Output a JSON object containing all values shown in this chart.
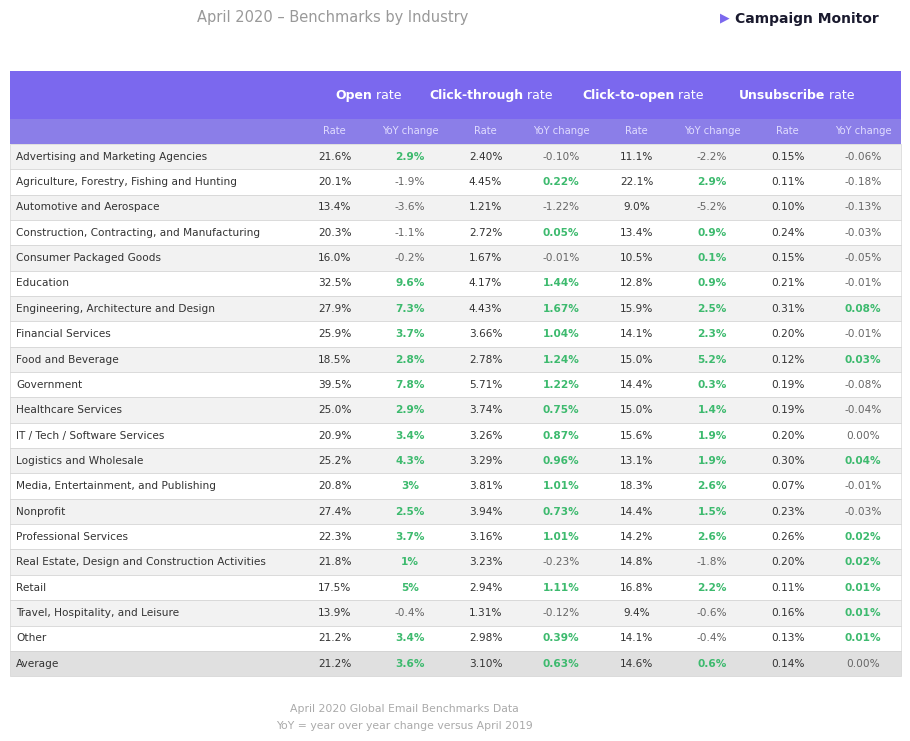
{
  "title": "April 2020 – Benchmarks by Industry",
  "logo_text": "Campaign Monitor",
  "footer1": "April 2020 Global Email Benchmarks Data",
  "footer2": "YoY = year over year change versus April 2019",
  "header_bg": "#7B68EE",
  "sub_header_bg": "#8B7EE8",
  "row_bg_light": "#F2F2F2",
  "row_bg_white": "#FFFFFF",
  "avg_row_bg": "#E0E0E0",
  "industries": [
    "Advertising and Marketing Agencies",
    "Agriculture, Forestry, Fishing and Hunting",
    "Automotive and Aerospace",
    "Construction, Contracting, and Manufacturing",
    "Consumer Packaged Goods",
    "Education",
    "Engineering, Architecture and Design",
    "Financial Services",
    "Food and Beverage",
    "Government",
    "Healthcare Services",
    "IT / Tech / Software Services",
    "Logistics and Wholesale",
    "Media, Entertainment, and Publishing",
    "Nonprofit",
    "Professional Services",
    "Real Estate, Design and Construction Activities",
    "Retail",
    "Travel, Hospitality, and Leisure",
    "Other",
    "Average"
  ],
  "data": [
    [
      "21.6%",
      "2.9%",
      "2.40%",
      "-0.10%",
      "11.1%",
      "-2.2%",
      "0.15%",
      "-0.06%"
    ],
    [
      "20.1%",
      "-1.9%",
      "4.45%",
      "0.22%",
      "22.1%",
      "2.9%",
      "0.11%",
      "-0.18%"
    ],
    [
      "13.4%",
      "-3.6%",
      "1.21%",
      "-1.22%",
      "9.0%",
      "-5.2%",
      "0.10%",
      "-0.13%"
    ],
    [
      "20.3%",
      "-1.1%",
      "2.72%",
      "0.05%",
      "13.4%",
      "0.9%",
      "0.24%",
      "-0.03%"
    ],
    [
      "16.0%",
      "-0.2%",
      "1.67%",
      "-0.01%",
      "10.5%",
      "0.1%",
      "0.15%",
      "-0.05%"
    ],
    [
      "32.5%",
      "9.6%",
      "4.17%",
      "1.44%",
      "12.8%",
      "0.9%",
      "0.21%",
      "-0.01%"
    ],
    [
      "27.9%",
      "7.3%",
      "4.43%",
      "1.67%",
      "15.9%",
      "2.5%",
      "0.31%",
      "0.08%"
    ],
    [
      "25.9%",
      "3.7%",
      "3.66%",
      "1.04%",
      "14.1%",
      "2.3%",
      "0.20%",
      "-0.01%"
    ],
    [
      "18.5%",
      "2.8%",
      "2.78%",
      "1.24%",
      "15.0%",
      "5.2%",
      "0.12%",
      "0.03%"
    ],
    [
      "39.5%",
      "7.8%",
      "5.71%",
      "1.22%",
      "14.4%",
      "0.3%",
      "0.19%",
      "-0.08%"
    ],
    [
      "25.0%",
      "2.9%",
      "3.74%",
      "0.75%",
      "15.0%",
      "1.4%",
      "0.19%",
      "-0.04%"
    ],
    [
      "20.9%",
      "3.4%",
      "3.26%",
      "0.87%",
      "15.6%",
      "1.9%",
      "0.20%",
      "0.00%"
    ],
    [
      "25.2%",
      "4.3%",
      "3.29%",
      "0.96%",
      "13.1%",
      "1.9%",
      "0.30%",
      "0.04%"
    ],
    [
      "20.8%",
      "3%",
      "3.81%",
      "1.01%",
      "18.3%",
      "2.6%",
      "0.07%",
      "-0.01%"
    ],
    [
      "27.4%",
      "2.5%",
      "3.94%",
      "0.73%",
      "14.4%",
      "1.5%",
      "0.23%",
      "-0.03%"
    ],
    [
      "22.3%",
      "3.7%",
      "3.16%",
      "1.01%",
      "14.2%",
      "2.6%",
      "0.26%",
      "0.02%"
    ],
    [
      "21.8%",
      "1%",
      "3.23%",
      "-0.23%",
      "14.8%",
      "-1.8%",
      "0.20%",
      "0.02%"
    ],
    [
      "17.5%",
      "5%",
      "2.94%",
      "1.11%",
      "16.8%",
      "2.2%",
      "0.11%",
      "0.01%"
    ],
    [
      "13.9%",
      "-0.4%",
      "1.31%",
      "-0.12%",
      "9.4%",
      "-0.6%",
      "0.16%",
      "0.01%"
    ],
    [
      "21.2%",
      "3.4%",
      "2.98%",
      "0.39%",
      "14.1%",
      "-0.4%",
      "0.13%",
      "0.01%"
    ],
    [
      "21.2%",
      "3.6%",
      "3.10%",
      "0.63%",
      "14.6%",
      "0.6%",
      "0.14%",
      "0.00%"
    ]
  ],
  "yoy_positive_color": "#3DBA6E",
  "yoy_negative_color": "#666666",
  "normal_color": "#333333",
  "white": "#FFFFFF",
  "purple": "#7B68EE",
  "logo_color": "#1A1A2E",
  "logo_icon_color": "#7B68EE",
  "title_color": "#999999",
  "footer_color": "#AAAAAA",
  "border_color": "#CCCCCC"
}
